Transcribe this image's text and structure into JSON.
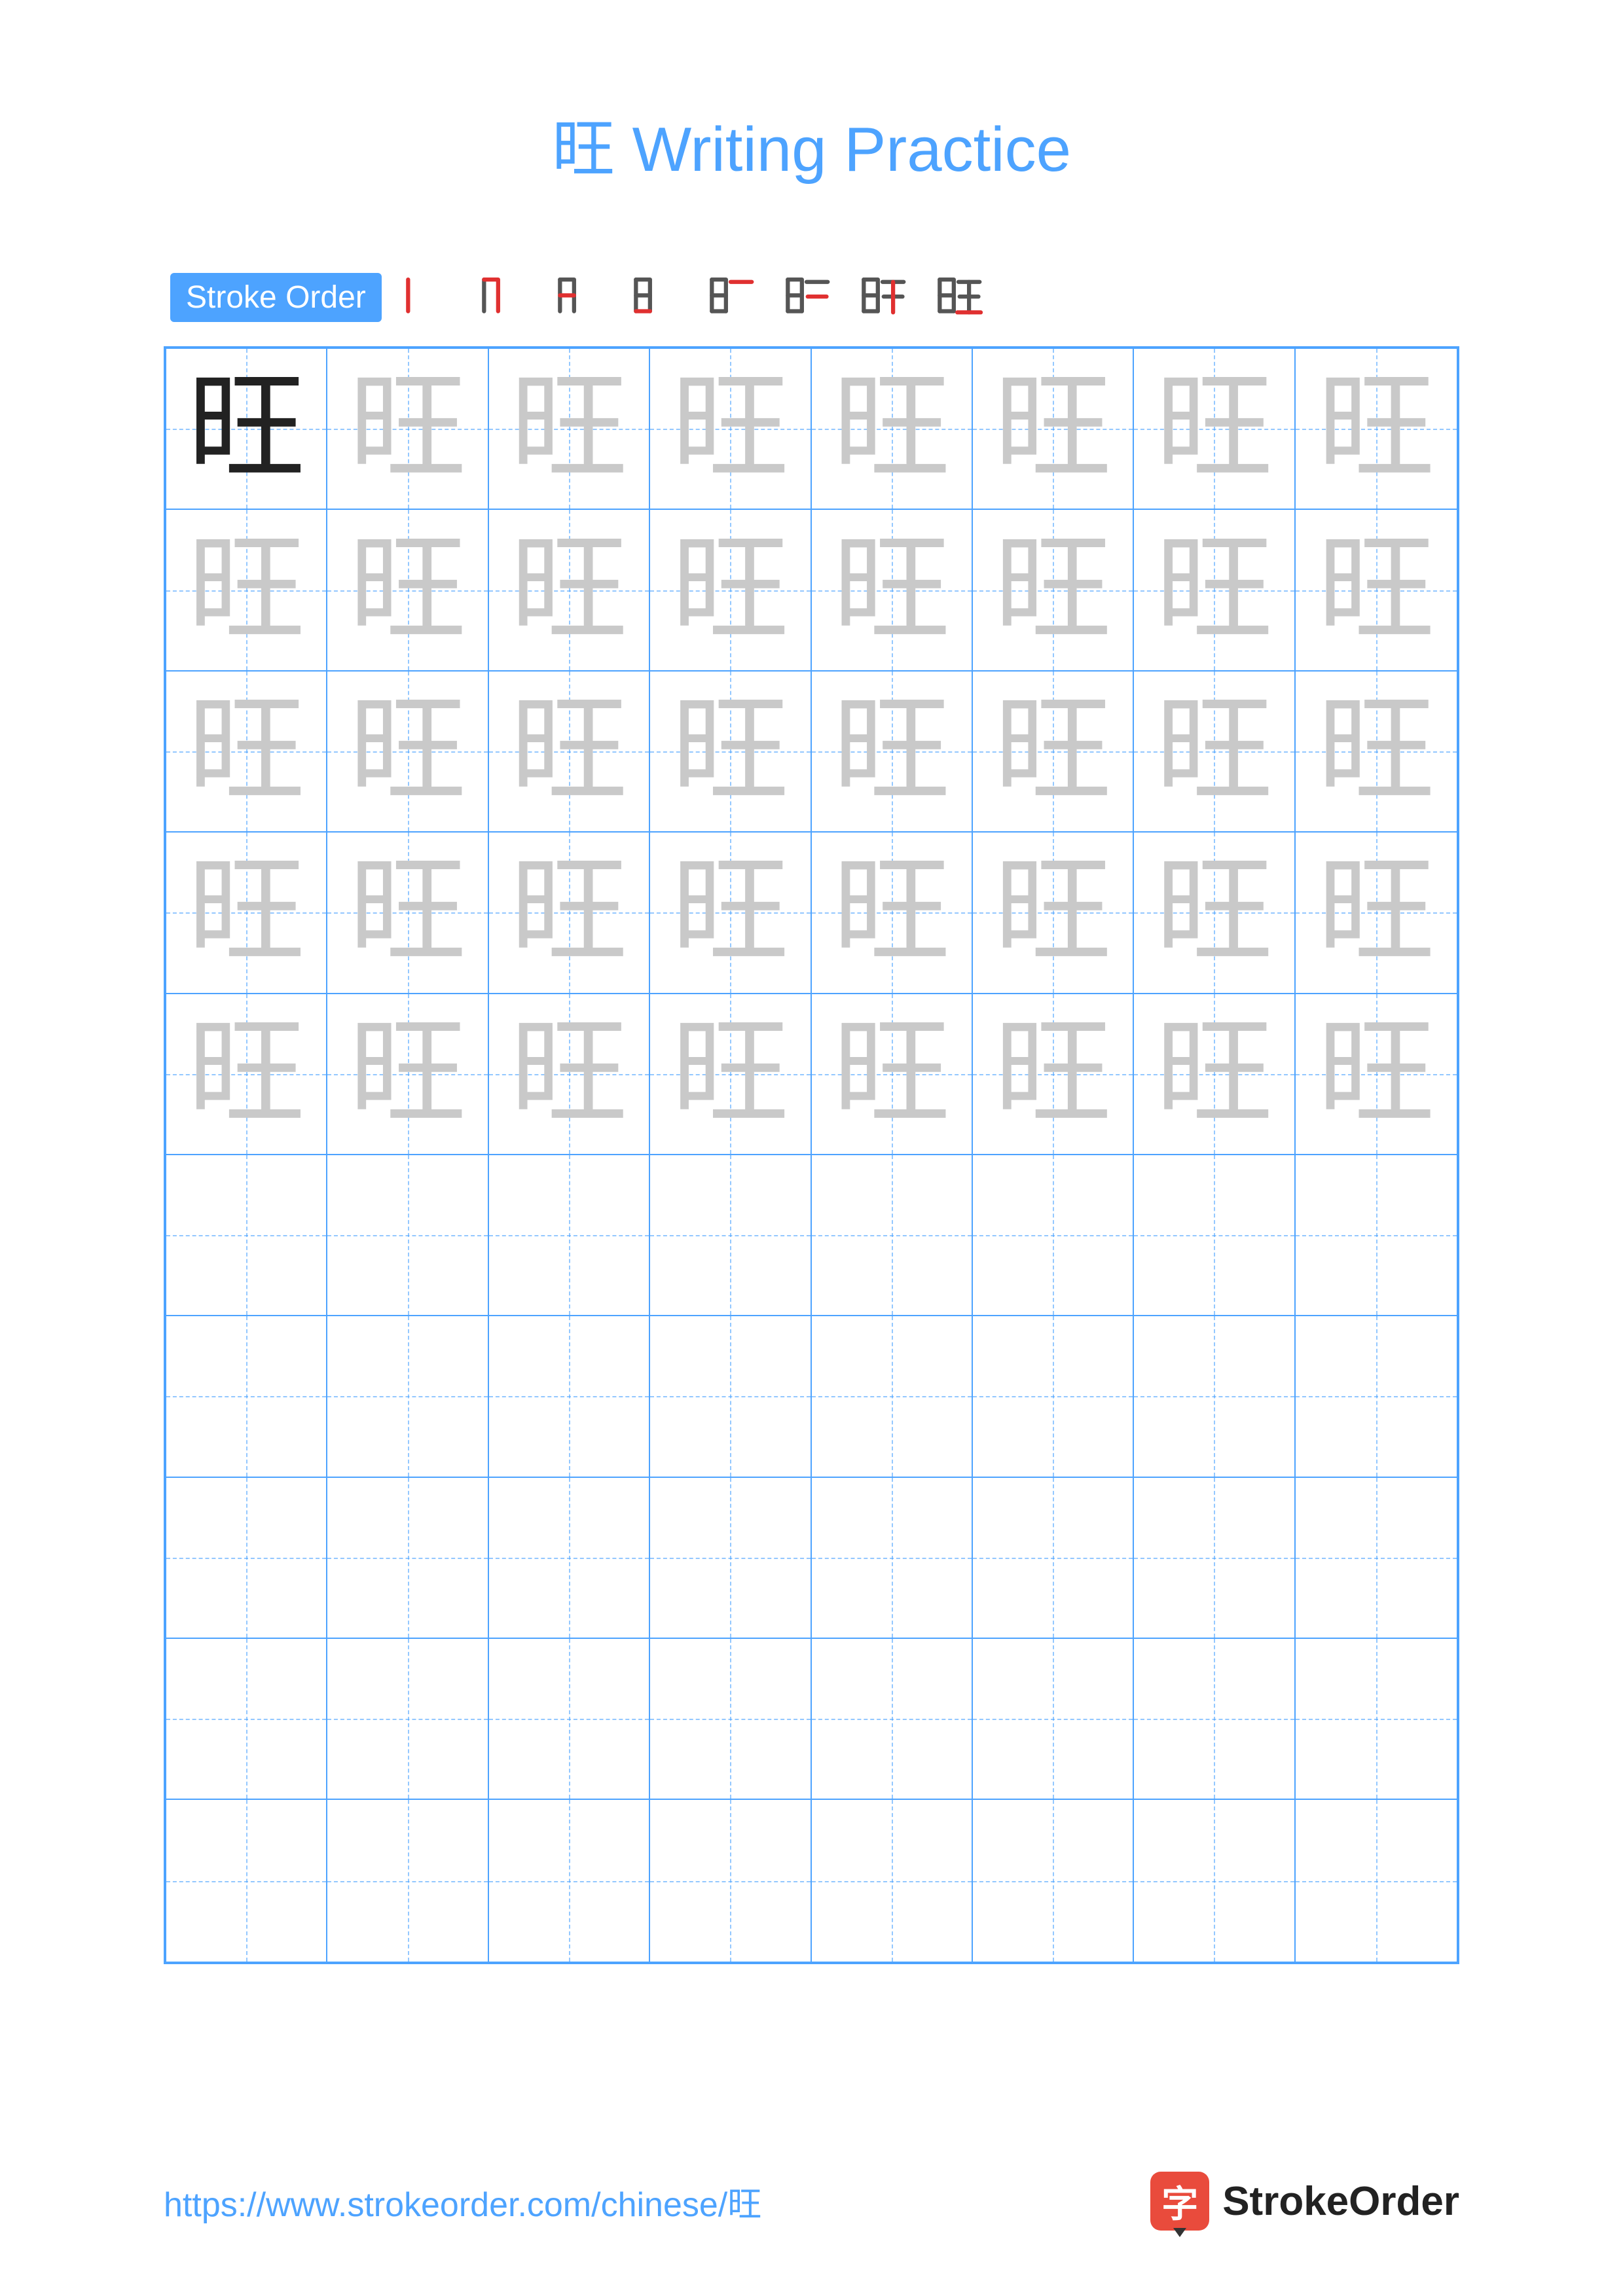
{
  "title": "旺 Writing Practice",
  "character": "旺",
  "stroke_order_label": "Stroke Order",
  "stroke_count": 8,
  "colors": {
    "primary": "#4da3ff",
    "model_char": "#222222",
    "trace_char": "#c9c9c9",
    "current_stroke": "#e03030",
    "prev_stroke": "#555555",
    "grid_line": "#4da3ff",
    "guide_line": "rgba(77,163,255,0.6)",
    "background": "#ffffff",
    "logo_bg": "#e94b3c"
  },
  "grid": {
    "columns": 8,
    "rows": 10,
    "trace_rows": 5,
    "empty_rows": 5,
    "model_cell": {
      "row": 0,
      "col": 0
    }
  },
  "typography": {
    "title_fontsize": 96,
    "char_fontsize": 180,
    "badge_fontsize": 48,
    "url_fontsize": 52,
    "logo_text_fontsize": 62
  },
  "stroke_steps": [
    {
      "step": 1,
      "desc": "left vertical of 日"
    },
    {
      "step": 2,
      "desc": "top-right hook of 日"
    },
    {
      "step": 3,
      "desc": "middle horizontal of 日"
    },
    {
      "step": 4,
      "desc": "bottom horizontal of 日"
    },
    {
      "step": 5,
      "desc": "top horizontal of 王"
    },
    {
      "step": 6,
      "desc": "middle horizontal of 王"
    },
    {
      "step": 7,
      "desc": "vertical of 王"
    },
    {
      "step": 8,
      "desc": "bottom horizontal of 王"
    }
  ],
  "footer": {
    "url": "https://www.strokeorder.com/chinese/旺",
    "logo_mark": "字",
    "logo_text": "StrokeOrder"
  }
}
